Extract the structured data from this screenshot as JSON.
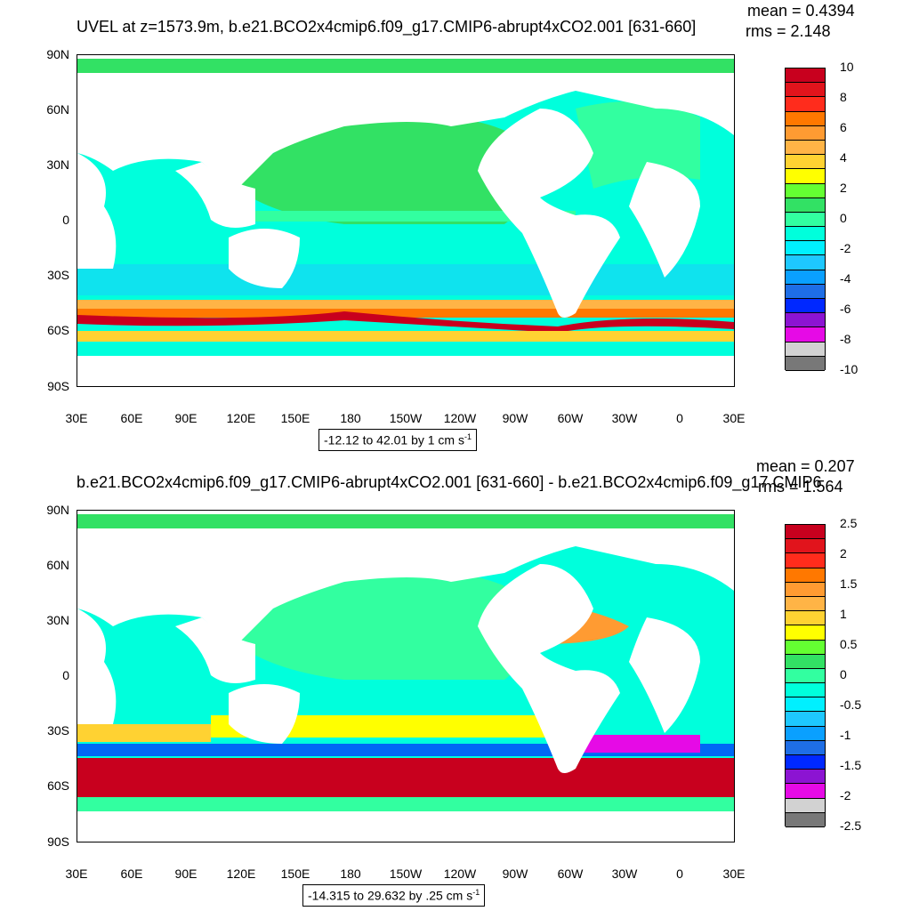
{
  "top": {
    "title": "UVEL at z=1573.9m, b.e21.BCO2x4cmip6.f09_g17.CMIP6-abrupt4xCO2.001 [631-660]",
    "mean": "mean = 0.4394",
    "rms": "rms = 2.148",
    "range": "-12.12 to 42.01 by 1 cm s",
    "range_sup": "-1",
    "colorbar_labels": [
      "10",
      "8",
      "6",
      "4",
      "2",
      "0",
      "-2",
      "-4",
      "-6",
      "-8",
      "-10"
    ],
    "colors": [
      "#c8001e",
      "#e1141c",
      "#ff2c1c",
      "#ff7800",
      "#ff9b32",
      "#ffb446",
      "#ffd232",
      "#ffff00",
      "#64ff32",
      "#32e164",
      "#32ffa0",
      "#00ffdc",
      "#00f0ff",
      "#1ec8ff",
      "#0aa0ff",
      "#1e6ee6",
      "#0028ff",
      "#8c14d2",
      "#e60ae6",
      "#d2d2d2",
      "#787878"
    ]
  },
  "bottom": {
    "title": "b.e21.BCO2x4cmip6.f09_g17.CMIP6-abrupt4xCO2.001 [631-660] - b.e21.BCO2x4cmip6.f09_g17.CMIP6",
    "mean": "mean = 0.207",
    "rms": "rms = 1.564",
    "range": "-14.315 to 29.632 by .25 cm s",
    "range_sup": "-1",
    "colorbar_labels": [
      "2.5",
      "2",
      "1.5",
      "1",
      "0.5",
      "0",
      "-0.5",
      "-1",
      "-1.5",
      "-2",
      "-2.5"
    ],
    "colors": [
      "#c8001e",
      "#e1141c",
      "#ff2c1c",
      "#ff7800",
      "#ff9b32",
      "#ffb446",
      "#ffd232",
      "#ffff00",
      "#64ff32",
      "#32e164",
      "#32ffa0",
      "#00ffdc",
      "#00f0ff",
      "#1ec8ff",
      "#0aa0ff",
      "#1e6ee6",
      "#0028ff",
      "#8c14d2",
      "#e60ae6",
      "#d2d2d2",
      "#787878"
    ]
  },
  "axes": {
    "lat_labels": [
      "90N",
      "60N",
      "30N",
      "0",
      "30S",
      "60S",
      "90S"
    ],
    "lon_labels": [
      "30E",
      "60E",
      "90E",
      "120E",
      "150E",
      "180",
      "150W",
      "120W",
      "90W",
      "60W",
      "30W",
      "0",
      "30E"
    ]
  }
}
